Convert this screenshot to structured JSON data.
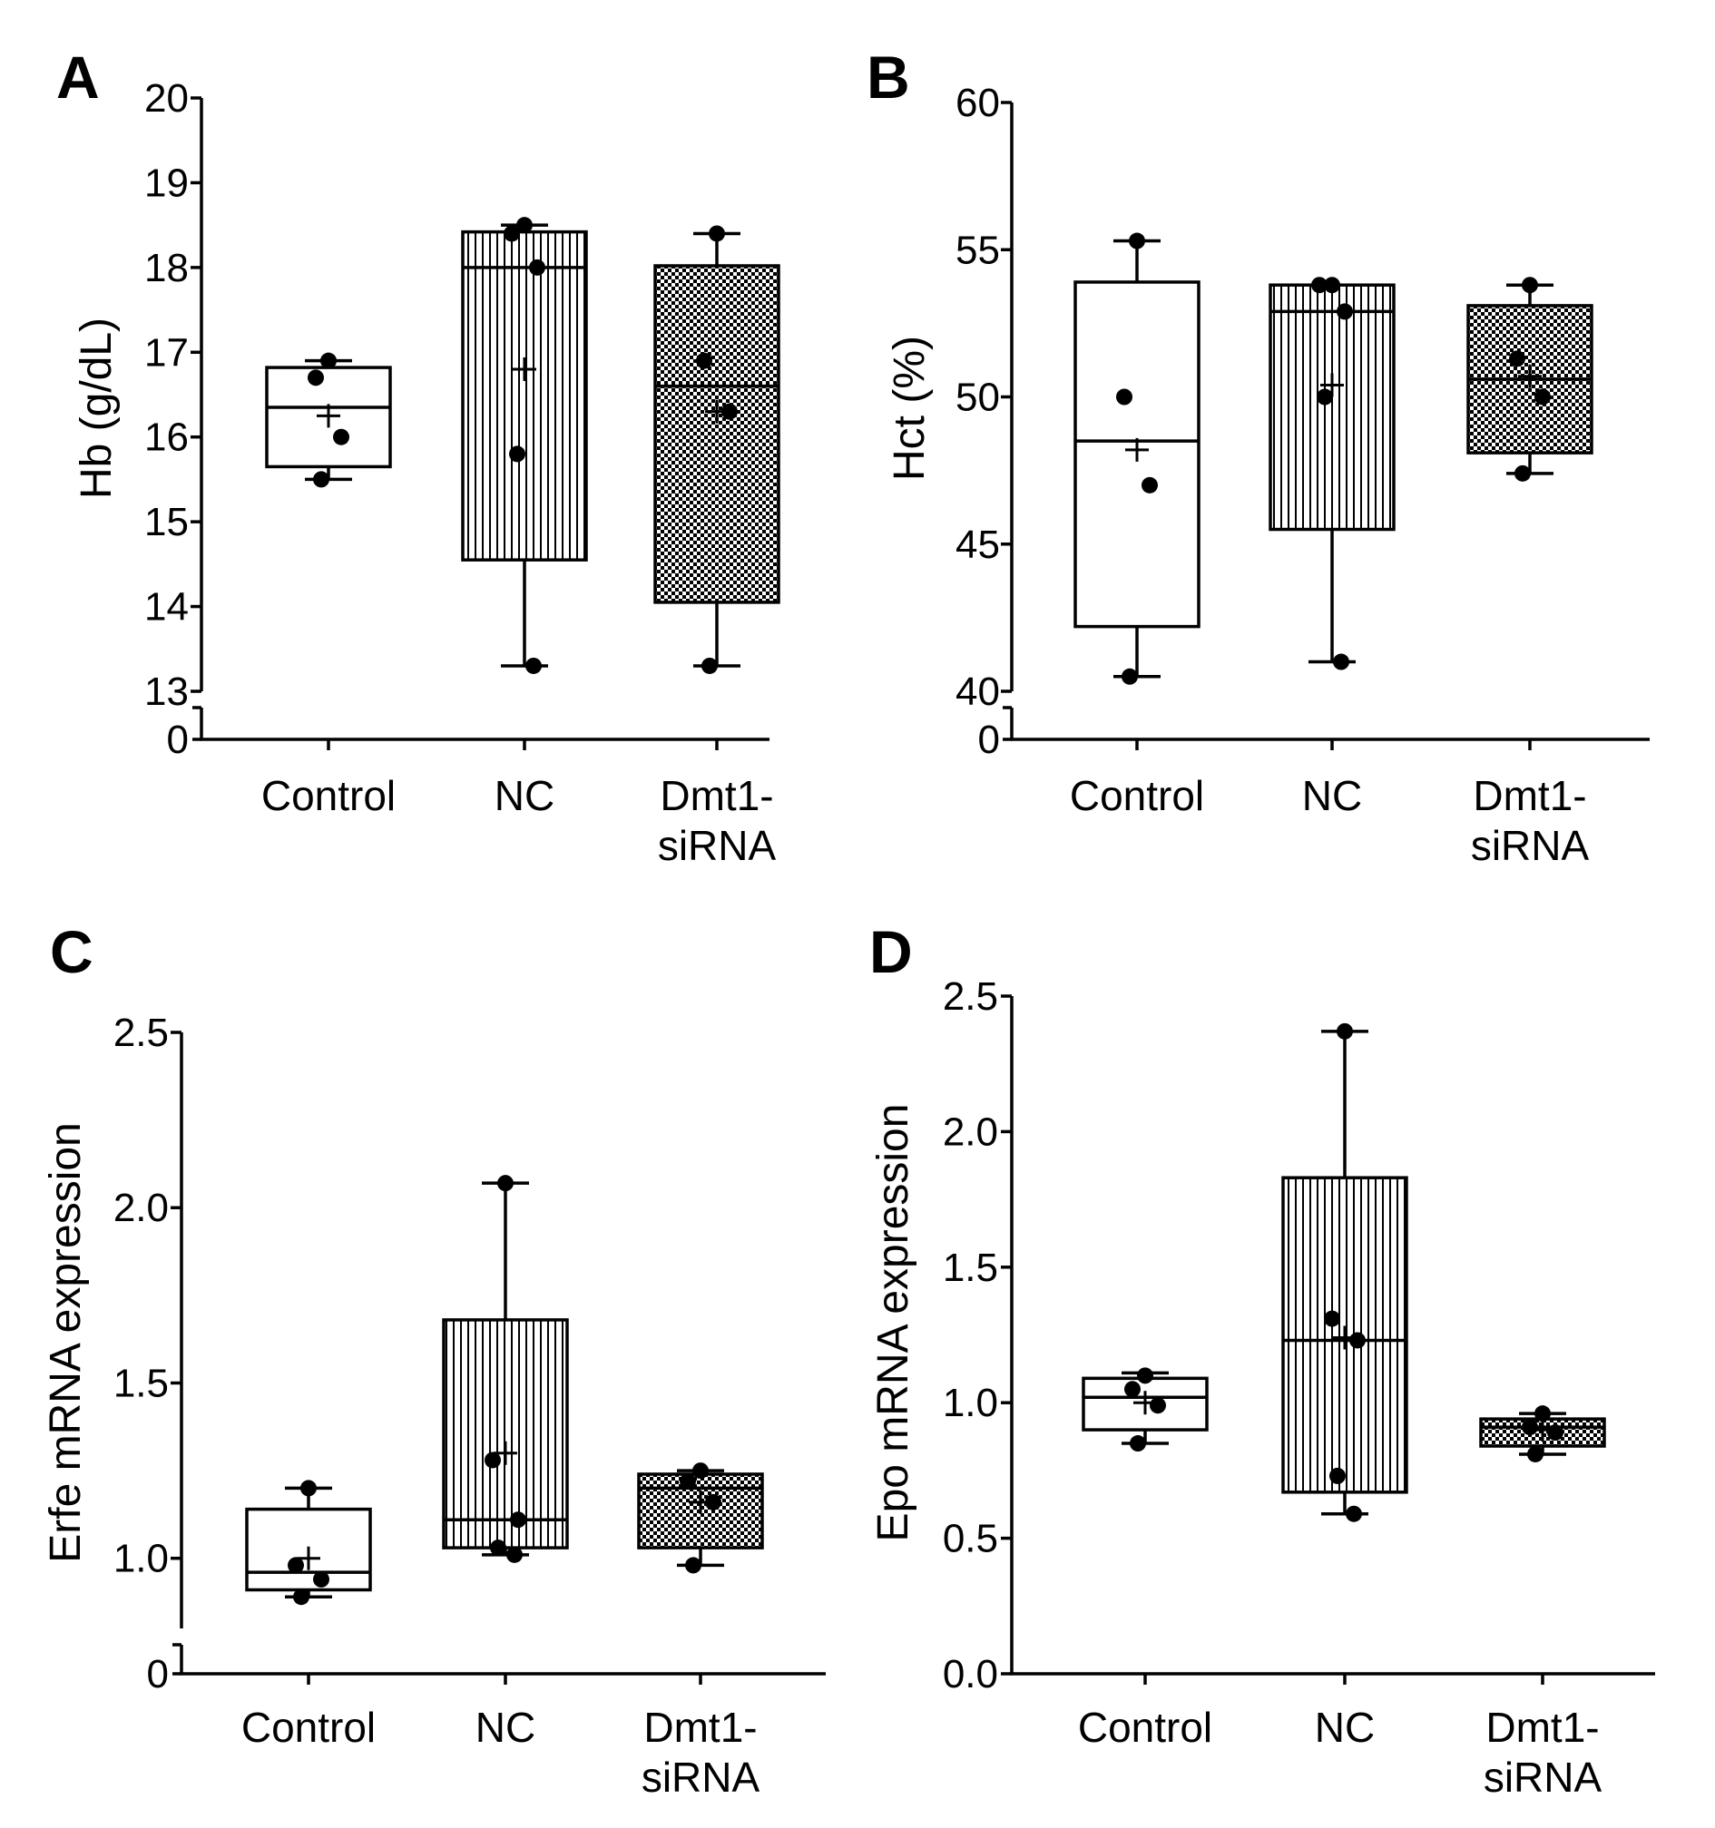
{
  "colors": {
    "ink": "#000000",
    "box_fill_plain": "#ffffff"
  },
  "chart_data": [
    {
      "panel": "A",
      "type": "box",
      "ylabel": "Hb (g/dL)",
      "xlabel": "",
      "ylim": [
        13,
        20
      ],
      "axis_break": true,
      "yticks": [
        "13",
        "14",
        "15",
        "16",
        "17",
        "18",
        "19",
        "20"
      ],
      "break_tick": "0",
      "categories": [
        {
          "name": "Control",
          "label_lines": [
            "Control"
          ],
          "pattern": "none",
          "whisker_low": 15.5,
          "q1": 15.65,
          "median": 16.35,
          "q3": 16.82,
          "whisker_high": 16.9,
          "mean": 16.25,
          "points": [
            16.9,
            16.7,
            16.0,
            15.5
          ]
        },
        {
          "name": "NC",
          "label_lines": [
            "NC"
          ],
          "pattern": "vertical",
          "whisker_low": 13.3,
          "q1": 14.55,
          "median": 18.0,
          "q3": 18.42,
          "whisker_high": 18.5,
          "mean": 16.8,
          "points": [
            18.5,
            18.4,
            18.0,
            15.8,
            13.3
          ]
        },
        {
          "name": "Dmt1-siRNA",
          "label_lines": [
            "Dmt1-",
            "siRNA"
          ],
          "pattern": "check",
          "whisker_low": 13.3,
          "q1": 14.05,
          "median": 16.6,
          "q3": 18.02,
          "whisker_high": 18.4,
          "mean": 16.3,
          "points": [
            18.4,
            16.9,
            16.3,
            13.3
          ]
        }
      ]
    },
    {
      "panel": "B",
      "type": "box",
      "ylabel": "Hct (%)",
      "xlabel": "",
      "ylim": [
        40,
        60
      ],
      "axis_break": true,
      "yticks": [
        "40",
        "45",
        "50",
        "55",
        "60"
      ],
      "break_tick": "0",
      "categories": [
        {
          "name": "Control",
          "label_lines": [
            "Control"
          ],
          "pattern": "none",
          "whisker_low": 40.5,
          "q1": 42.2,
          "median": 48.5,
          "q3": 53.9,
          "whisker_high": 55.3,
          "mean": 48.2,
          "points": [
            55.3,
            50.0,
            47.0,
            40.5
          ]
        },
        {
          "name": "NC",
          "label_lines": [
            "NC"
          ],
          "pattern": "vertical",
          "whisker_low": 41.0,
          "q1": 45.5,
          "median": 52.9,
          "q3": 53.8,
          "whisker_high": 53.8,
          "mean": 50.4,
          "points": [
            53.8,
            53.8,
            52.9,
            50.0,
            41.0
          ]
        },
        {
          "name": "Dmt1-siRNA",
          "label_lines": [
            "Dmt1-",
            "siRNA"
          ],
          "pattern": "check",
          "whisker_low": 47.4,
          "q1": 48.1,
          "median": 50.6,
          "q3": 53.1,
          "whisker_high": 53.8,
          "mean": 50.7,
          "points": [
            53.8,
            51.3,
            50.0,
            47.4
          ]
        }
      ]
    },
    {
      "panel": "C",
      "type": "box",
      "ylabel": "Erfe mRNA expression",
      "xlabel": "",
      "ylim": [
        0.8,
        2.5
      ],
      "axis_break": true,
      "yticks": [
        "1.0",
        "1.5",
        "2.0",
        "2.5"
      ],
      "break_tick": "0",
      "categories": [
        {
          "name": "Control",
          "label_lines": [
            "Control"
          ],
          "pattern": "none",
          "whisker_low": 0.89,
          "q1": 0.91,
          "median": 0.96,
          "q3": 1.14,
          "whisker_high": 1.2,
          "mean": 1.0,
          "points": [
            1.2,
            0.98,
            0.94,
            0.89
          ]
        },
        {
          "name": "NC",
          "label_lines": [
            "NC"
          ],
          "pattern": "vertical",
          "whisker_low": 1.01,
          "q1": 1.03,
          "median": 1.11,
          "q3": 1.68,
          "whisker_high": 2.07,
          "mean": 1.3,
          "points": [
            2.07,
            1.28,
            1.11,
            1.03,
            1.01
          ]
        },
        {
          "name": "Dmt1-siRNA",
          "label_lines": [
            "Dmt1-",
            "siRNA"
          ],
          "pattern": "check",
          "whisker_low": 0.98,
          "q1": 1.03,
          "median": 1.2,
          "q3": 1.24,
          "whisker_high": 1.25,
          "mean": 1.16,
          "points": [
            1.25,
            1.22,
            1.16,
            0.98
          ]
        }
      ]
    },
    {
      "panel": "D",
      "type": "box",
      "ylabel": "Epo mRNA expression",
      "xlabel": "",
      "ylim": [
        0.0,
        2.5
      ],
      "axis_break": false,
      "yticks": [
        "0.0",
        "0.5",
        "1.0",
        "1.5",
        "2.0",
        "2.5"
      ],
      "categories": [
        {
          "name": "Control",
          "label_lines": [
            "Control"
          ],
          "pattern": "none",
          "whisker_low": 0.85,
          "q1": 0.9,
          "median": 1.02,
          "q3": 1.09,
          "whisker_high": 1.11,
          "mean": 1.0,
          "points": [
            1.1,
            1.05,
            0.99,
            0.85
          ]
        },
        {
          "name": "NC",
          "label_lines": [
            "NC"
          ],
          "pattern": "vertical",
          "whisker_low": 0.59,
          "q1": 0.67,
          "median": 1.23,
          "q3": 1.83,
          "whisker_high": 2.37,
          "mean": 1.24,
          "points": [
            2.37,
            1.31,
            1.23,
            0.73,
            0.59
          ]
        },
        {
          "name": "Dmt1-siRNA",
          "label_lines": [
            "Dmt1-",
            "siRNA"
          ],
          "pattern": "check",
          "whisker_low": 0.81,
          "q1": 0.84,
          "median": 0.91,
          "q3": 0.94,
          "whisker_high": 0.96,
          "mean": 0.9,
          "points": [
            0.96,
            0.91,
            0.89,
            0.81
          ]
        }
      ]
    }
  ]
}
